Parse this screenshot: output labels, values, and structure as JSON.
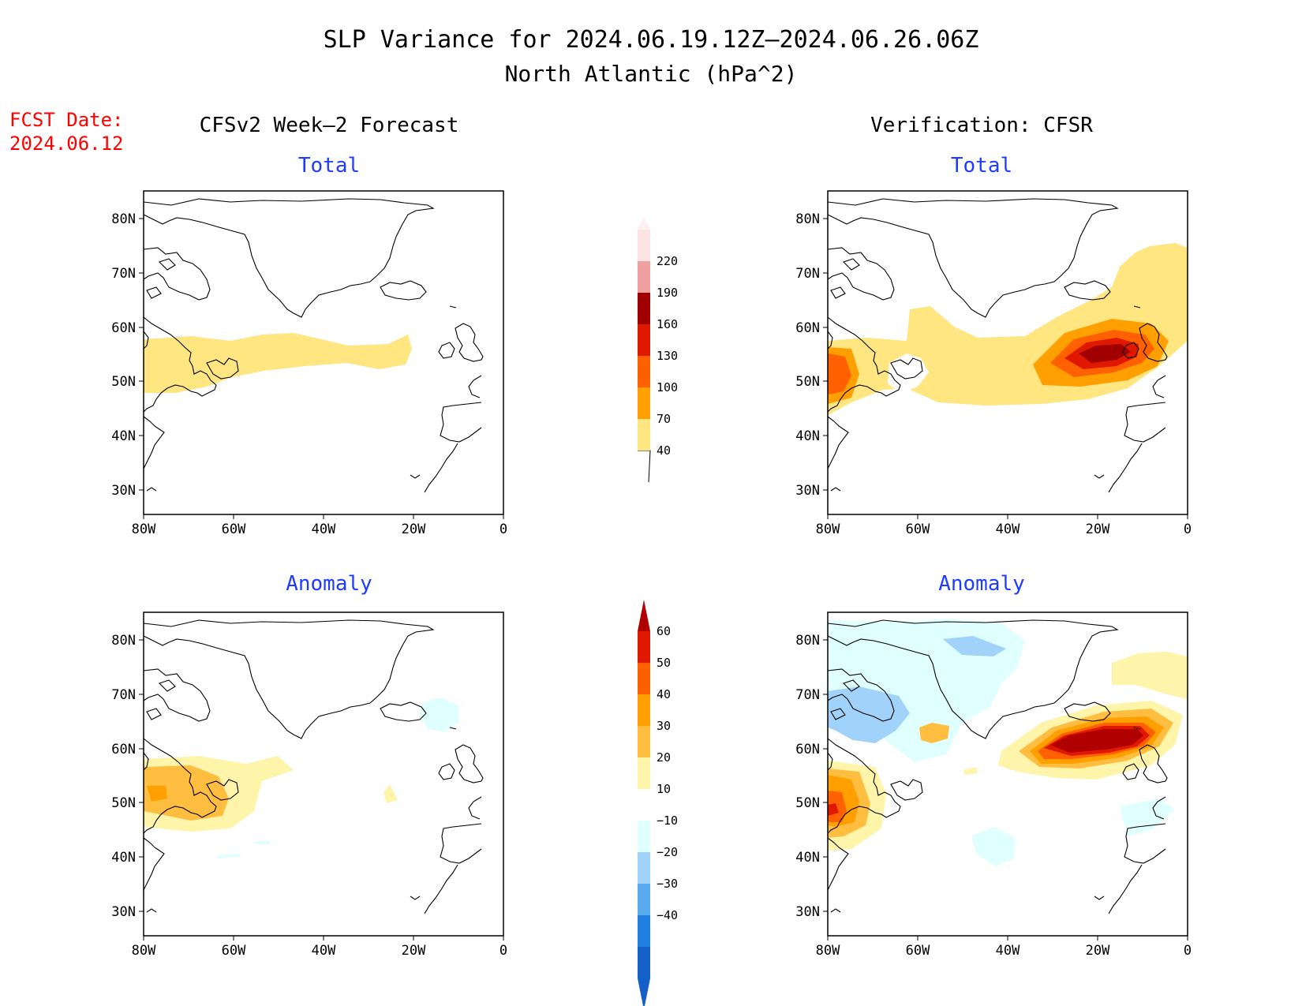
{
  "title": {
    "line1": "SLP Variance for 2024.06.19.12Z–2024.06.26.06Z",
    "line2": "North Atlantic (hPa^2)"
  },
  "fcst": {
    "label": "FCST Date:",
    "date": "2024.06.12"
  },
  "columns": {
    "left": "CFSv2 Week–2 Forecast",
    "right": "Verification: CFSR"
  },
  "panel_titles": {
    "total": "Total",
    "anomaly": "Anomaly"
  },
  "axes": {
    "lat_labels": [
      "80N",
      "70N",
      "60N",
      "50N",
      "40N",
      "30N"
    ],
    "lon_labels": [
      "80W",
      "60W",
      "40W",
      "20W",
      "0"
    ]
  },
  "colorbars": {
    "total": {
      "labels": [
        "40",
        "70",
        "100",
        "130",
        "160",
        "190",
        "220"
      ],
      "colors": [
        "#ffe680",
        "#ffa000",
        "#ff6000",
        "#e01800",
        "#a00000",
        "#f0a0a0",
        "#fce4e4"
      ]
    },
    "anomaly": {
      "labels": [
        "60",
        "50",
        "40",
        "30",
        "20",
        "10",
        "−10",
        "−20",
        "−30",
        "−40"
      ],
      "colors": [
        "#b00000",
        "#e01800",
        "#ff6000",
        "#ffa000",
        "#ffbe40",
        "#fff5aa",
        "#ffffff",
        "#e0ffff",
        "#a0d2fa",
        "#5aaaf0",
        "#2080e0",
        "#1460c8"
      ]
    }
  },
  "colors": {
    "title_blue": "#1e3cff",
    "fcst_red": "#ff0000"
  }
}
